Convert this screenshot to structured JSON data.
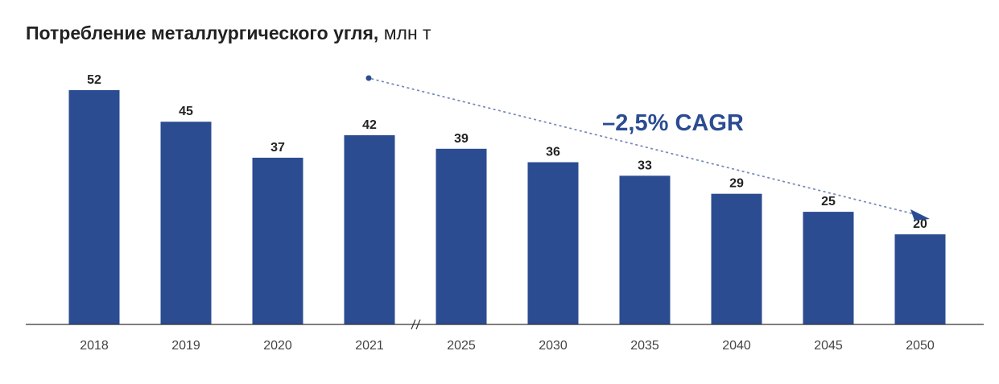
{
  "chart_data": {
    "type": "bar",
    "title": "Потребление металлургического угля,",
    "unit": "млн т",
    "categories": [
      "2018",
      "2019",
      "2020",
      "2021",
      "2025",
      "2030",
      "2035",
      "2040",
      "2045",
      "2050"
    ],
    "values": [
      52,
      45,
      37,
      42,
      39,
      36,
      33,
      29,
      25,
      20
    ],
    "axis_break_after": "2021",
    "annotation": "–2,5% CAGR",
    "ylim": [
      0,
      52
    ],
    "grid": false,
    "bar_color": "#2B4C91",
    "annotation_color": "#2B4C91"
  }
}
